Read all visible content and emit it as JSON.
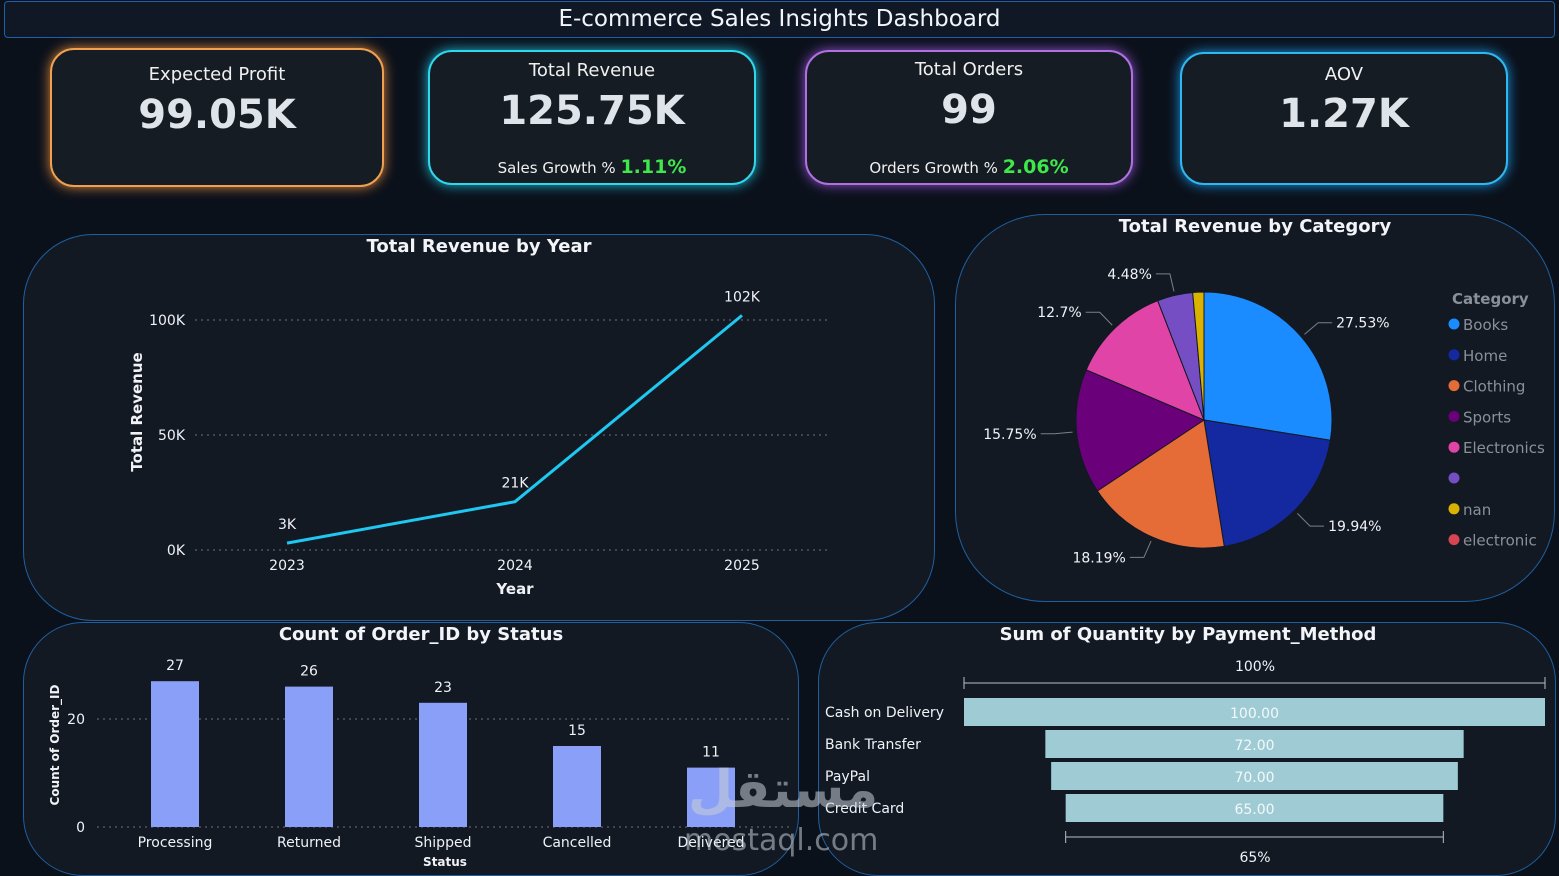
{
  "dashboard_title": "E-commerce Sales Insights Dashboard",
  "kpis": {
    "expected_profit": {
      "label": "Expected Profit",
      "value": "99.05K"
    },
    "total_revenue": {
      "label": "Total Revenue",
      "value": "125.75K",
      "growth_label": "Sales Growth %",
      "growth_value": "1.11%"
    },
    "total_orders": {
      "label": "Total Orders",
      "value": "99",
      "growth_label": "Orders Growth %",
      "growth_value": "2.06%"
    },
    "aov": {
      "label": "AOV",
      "value": "1.27K"
    }
  },
  "colors": {
    "growth": "#3ee84a",
    "line": "#1ec8f0",
    "bar": "#8aa0f8",
    "funnel": "#9fccd4"
  },
  "chart_data": [
    {
      "type": "line",
      "title": "Total Revenue by Year",
      "xlabel": "Year",
      "ylabel": "Total Revenue",
      "categories": [
        "2023",
        "2024",
        "2025"
      ],
      "values": [
        3,
        21,
        102
      ],
      "data_labels": [
        "3K",
        "21K",
        "102K"
      ],
      "yticks": [
        0,
        50,
        100
      ],
      "ytick_labels": [
        "0K",
        "50K",
        "100K"
      ],
      "ylim": [
        0,
        115
      ],
      "grid": true,
      "color": "#1ec8f0"
    },
    {
      "type": "pie",
      "title": "Total Revenue by Category",
      "legend_title": "Category",
      "legend_placement": "right",
      "slices": [
        {
          "name": "Books",
          "value": 27.53,
          "label": "27.53%",
          "color": "#1a8cff"
        },
        {
          "name": "Home",
          "value": 19.94,
          "label": "19.94%",
          "color": "#1428a0"
        },
        {
          "name": "Clothing",
          "value": 18.19,
          "label": "18.19%",
          "color": "#e66c37"
        },
        {
          "name": "Sports",
          "value": 15.75,
          "label": "15.75%",
          "color": "#6b007b"
        },
        {
          "name": "Electronics",
          "value": 12.7,
          "label": "12.7%",
          "color": "#e044a7"
        },
        {
          "name": "",
          "value": 4.48,
          "label": "4.48%",
          "color": "#744ec2"
        },
        {
          "name": "nan",
          "value": 1.41,
          "label": "",
          "color": "#d9b300"
        },
        {
          "name": "electronic",
          "value": 0,
          "label": "",
          "color": "#d64550"
        }
      ]
    },
    {
      "type": "bar",
      "title": "Count of Order_ID by Status",
      "xlabel": "Status",
      "ylabel": "Count of Order_ID",
      "categories": [
        "Processing",
        "Returned",
        "Shipped",
        "Cancelled",
        "Delivered"
      ],
      "values": [
        27,
        26,
        23,
        15,
        11
      ],
      "yticks": [
        0,
        20
      ],
      "ylim": [
        0,
        30
      ],
      "grid": true,
      "color": "#8aa0f8"
    },
    {
      "type": "funnel",
      "title": "Sum of Quantity by Payment_Method",
      "categories": [
        "Cash on Delivery",
        "Bank Transfer",
        "PayPal",
        "Credit Card"
      ],
      "values": [
        100,
        72,
        70,
        65
      ],
      "value_labels": [
        "100.00",
        "72.00",
        "70.00",
        "65.00"
      ],
      "top_percent": "100%",
      "bottom_percent": "65%",
      "color": "#9fccd4"
    }
  ],
  "watermark": {
    "arabic": "مستقل",
    "latin": "mostaql.com"
  }
}
